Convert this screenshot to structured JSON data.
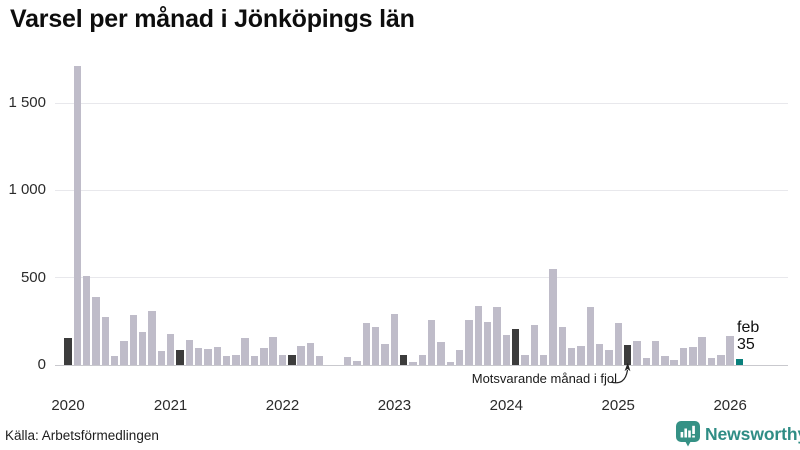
{
  "title": "Varsel per månad i Jönköpings län",
  "annotation": {
    "text": "Motsvarande månad i fjol",
    "target_month": "2025-02"
  },
  "current_label": {
    "month": "feb",
    "value": "35"
  },
  "footer": {
    "source": "Källa: Arbetsförmedlingen",
    "brand": "Newsworthy"
  },
  "colors": {
    "bar_default": "#bfbcc9",
    "bar_same_month": "#3c3c3c",
    "bar_current": "#0a807c",
    "brand_teal": "#2f8d85",
    "logo_badge": "#359185",
    "gridline": "#e8e8ec",
    "axis_line": "#c9c9ce"
  },
  "chart_data": {
    "type": "bar",
    "title": "Varsel per månad i Jönköpings län",
    "xlabel": "",
    "ylabel": "",
    "ylim": [
      0,
      1750
    ],
    "grid": true,
    "legend": "none",
    "y_ticks": [
      {
        "value": 0,
        "label": "0"
      },
      {
        "value": 500,
        "label": "500"
      },
      {
        "value": 1000,
        "label": "1 000"
      },
      {
        "value": 1500,
        "label": "1 500"
      }
    ],
    "x_year_ticks": [
      {
        "label": "2020",
        "month_index": 0
      },
      {
        "label": "2021",
        "month_index": 11
      },
      {
        "label": "2022",
        "month_index": 23
      },
      {
        "label": "2023",
        "month_index": 35
      },
      {
        "label": "2024",
        "month_index": 47
      },
      {
        "label": "2025",
        "month_index": 59
      },
      {
        "label": "2026",
        "month_index": 71
      }
    ],
    "months": [
      "2020-02",
      "2020-03",
      "2020-04",
      "2020-05",
      "2020-06",
      "2020-07",
      "2020-08",
      "2020-09",
      "2020-10",
      "2020-11",
      "2020-12",
      "2021-01",
      "2021-02",
      "2021-03",
      "2021-04",
      "2021-05",
      "2021-06",
      "2021-07",
      "2021-08",
      "2021-09",
      "2021-10",
      "2021-11",
      "2021-12",
      "2022-01",
      "2022-02",
      "2022-03",
      "2022-04",
      "2022-05",
      "2022-06",
      "2022-07",
      "2022-08",
      "2022-09",
      "2022-10",
      "2022-11",
      "2022-12",
      "2023-01",
      "2023-02",
      "2023-03",
      "2023-04",
      "2023-05",
      "2023-06",
      "2023-07",
      "2023-08",
      "2023-09",
      "2023-10",
      "2023-11",
      "2023-12",
      "2024-01",
      "2024-02",
      "2024-03",
      "2024-04",
      "2024-05",
      "2024-06",
      "2024-07",
      "2024-08",
      "2024-09",
      "2024-10",
      "2024-11",
      "2024-12",
      "2025-01",
      "2025-02",
      "2025-03",
      "2025-04",
      "2025-05",
      "2025-06",
      "2025-07",
      "2025-08",
      "2025-09",
      "2025-10",
      "2025-11",
      "2025-12",
      "2026-01",
      "2026-02"
    ],
    "values": [
      155,
      1715,
      510,
      390,
      275,
      50,
      135,
      285,
      190,
      310,
      80,
      175,
      85,
      145,
      95,
      90,
      105,
      50,
      60,
      155,
      50,
      100,
      160,
      60,
      55,
      110,
      125,
      50,
      0,
      0,
      45,
      25,
      240,
      220,
      120,
      290,
      55,
      20,
      60,
      260,
      130,
      15,
      85,
      255,
      340,
      245,
      330,
      170,
      205,
      55,
      230,
      55,
      550,
      220,
      95,
      110,
      330,
      120,
      85,
      240,
      115,
      135,
      40,
      135,
      50,
      30,
      95,
      105,
      160,
      40,
      60,
      165,
      35
    ],
    "highlight_rule": {
      "february_bars": "dark (same month as current, per year)",
      "current_bar": "teal, 2026-02, value 35"
    }
  }
}
